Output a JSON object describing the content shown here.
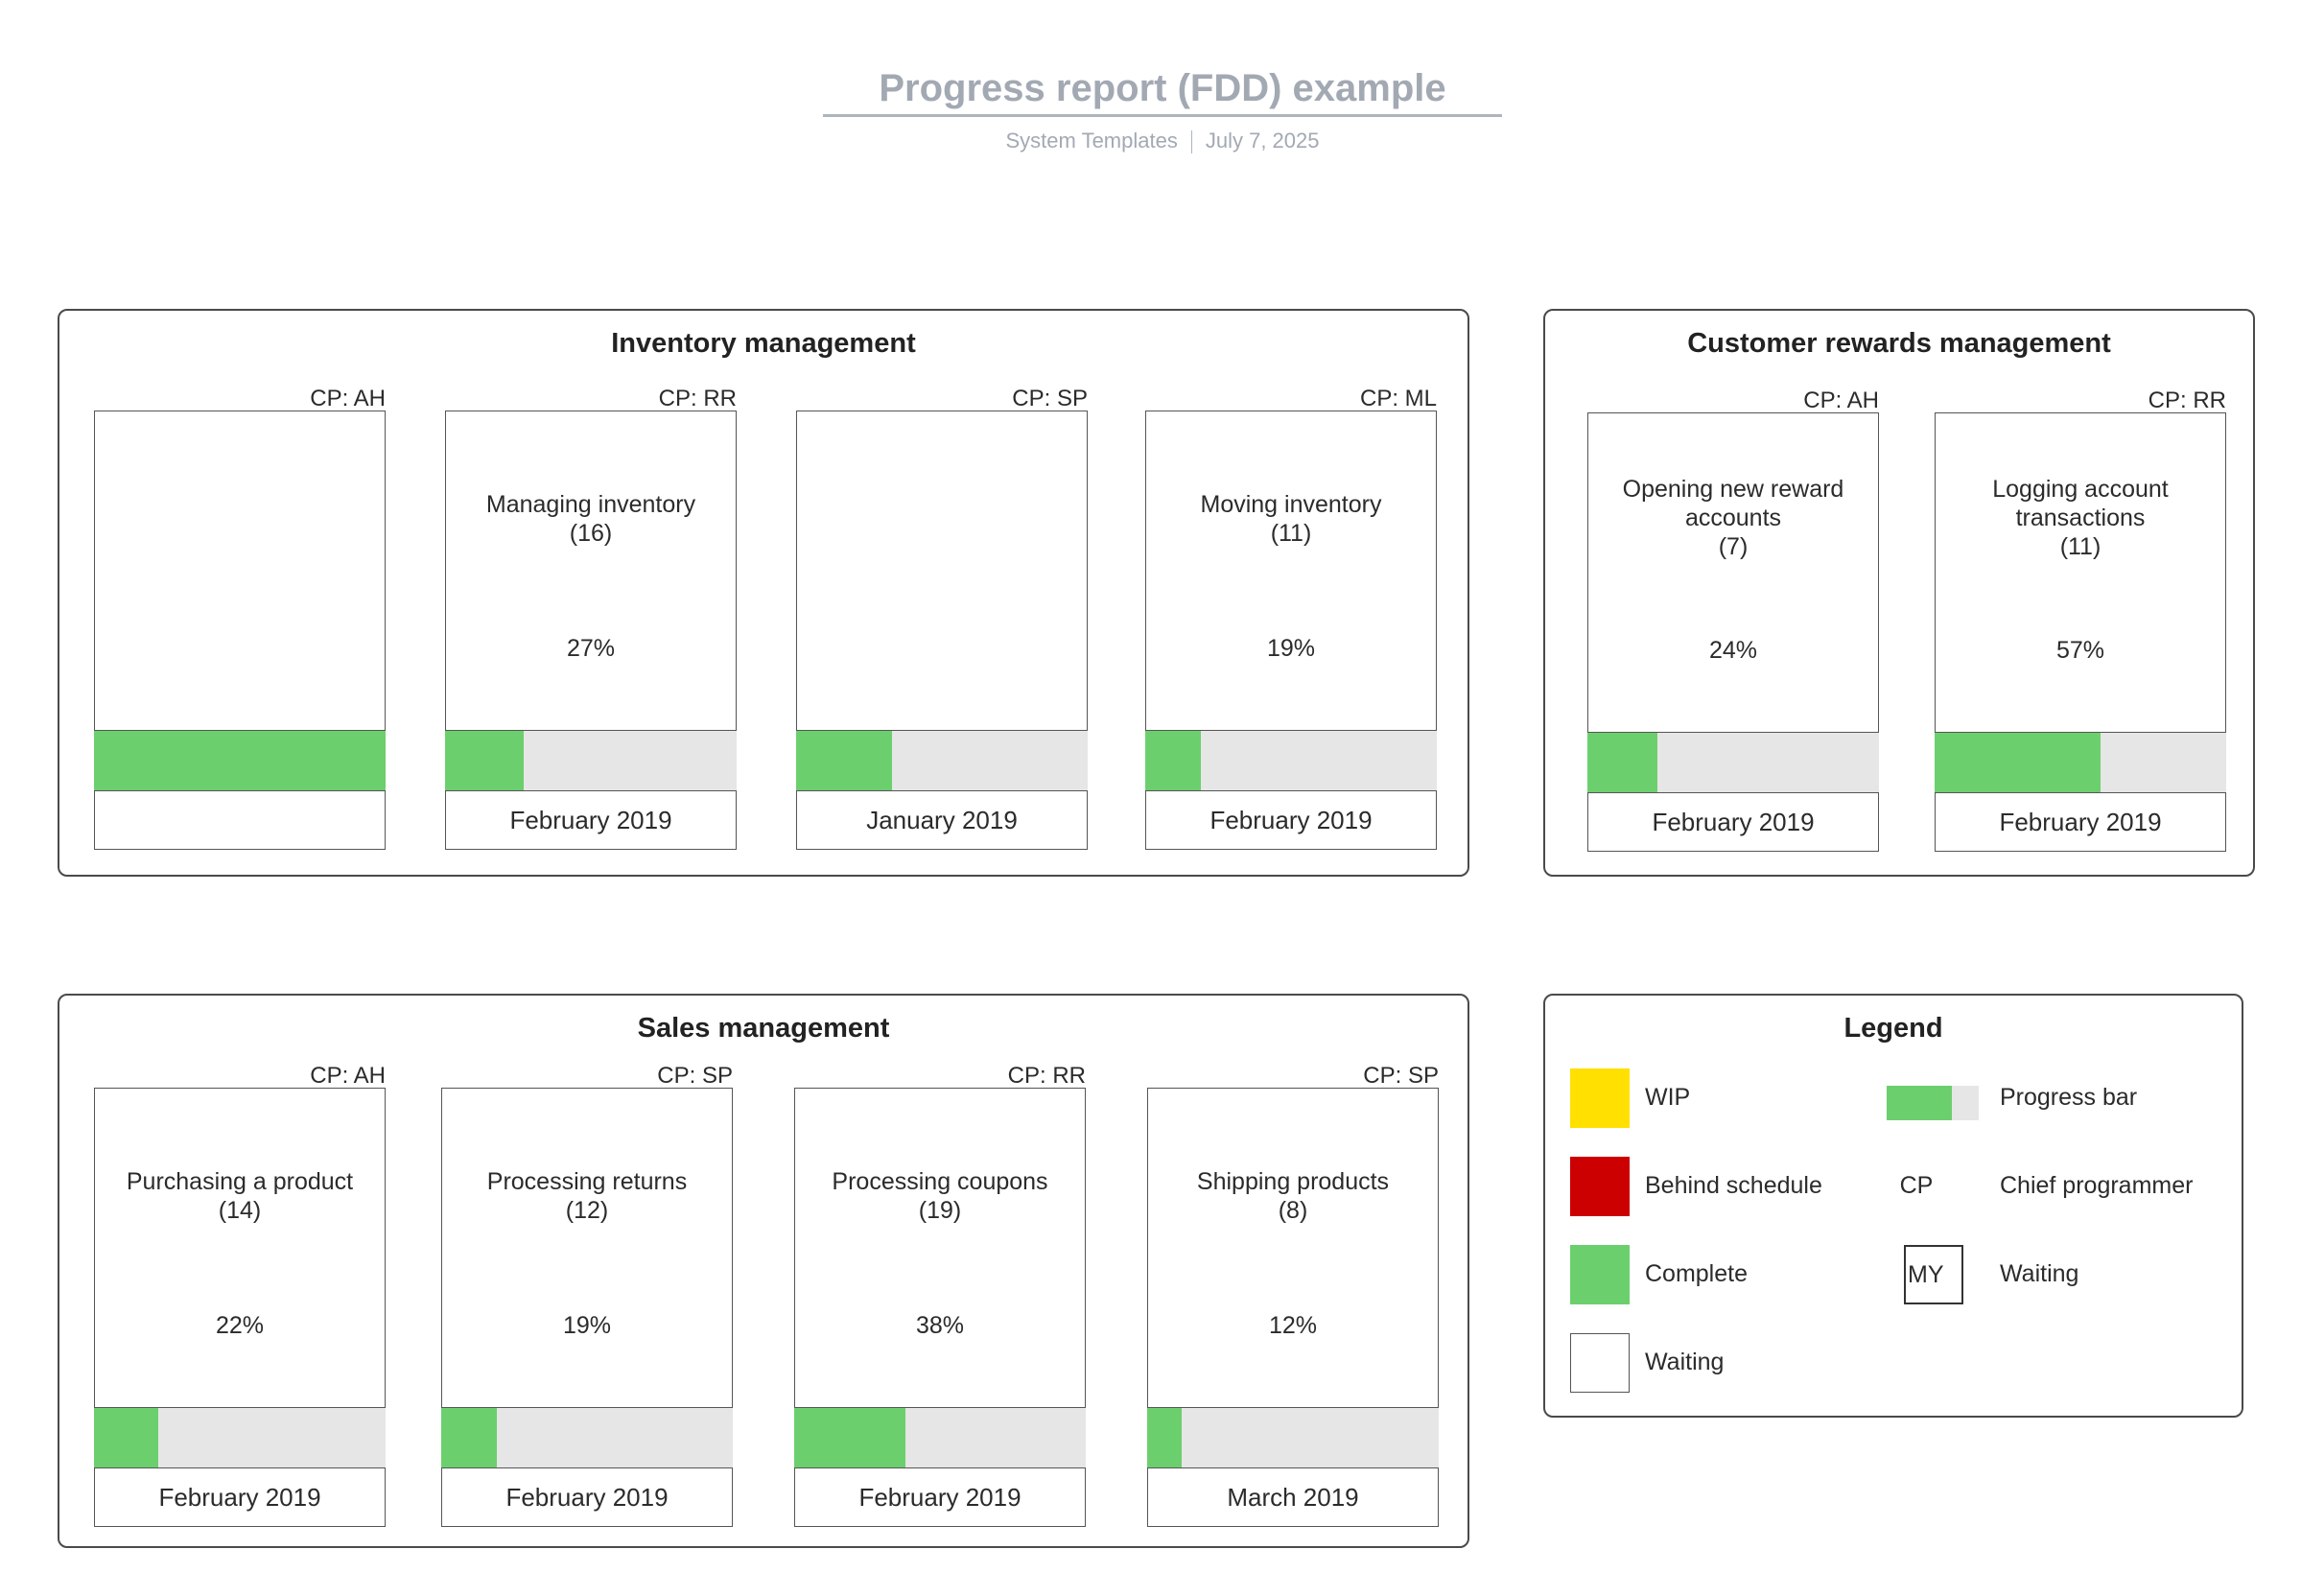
{
  "header": {
    "title": "Progress report (FDD) example",
    "source": "System Templates",
    "date": "July 7, 2025"
  },
  "groups": {
    "inventory": {
      "title": "Inventory management",
      "cards": [
        {
          "cp": "CP: AH",
          "name": "",
          "percent": "",
          "progress": 1.0,
          "date": ""
        },
        {
          "cp": "CP: RR",
          "name": "Managing inventory\n(16)",
          "percent": "27%",
          "progress": 0.27,
          "date": "February 2019"
        },
        {
          "cp": "CP: SP",
          "name": "",
          "percent": "",
          "progress": 0.33,
          "date": "January 2019"
        },
        {
          "cp": "CP: ML",
          "name": "Moving inventory\n(11)",
          "percent": "19%",
          "progress": 0.19,
          "date": "February 2019"
        }
      ]
    },
    "rewards": {
      "title": "Customer rewards management",
      "cards": [
        {
          "cp": "CP: AH",
          "name": "Opening new reward\naccounts\n(7)",
          "percent": "24%",
          "progress": 0.24,
          "date": "February 2019"
        },
        {
          "cp": "CP: RR",
          "name": "Logging account\ntransactions\n(11)",
          "percent": "57%",
          "progress": 0.57,
          "date": "February 2019"
        }
      ]
    },
    "sales": {
      "title": "Sales management",
      "cards": [
        {
          "cp": "CP: AH",
          "name": "Purchasing a product\n(14)",
          "percent": "22%",
          "progress": 0.22,
          "date": "February 2019"
        },
        {
          "cp": "CP: SP",
          "name": "Processing returns\n(12)",
          "percent": "19%",
          "progress": 0.19,
          "date": "February 2019"
        },
        {
          "cp": "CP: RR",
          "name": "Processing coupons\n(19)",
          "percent": "38%",
          "progress": 0.38,
          "date": "February 2019"
        },
        {
          "cp": "CP: SP",
          "name": "Shipping products\n(8)",
          "percent": "12%",
          "progress": 0.12,
          "date": "March 2019"
        }
      ]
    }
  },
  "legend": {
    "title": "Legend",
    "wip": "WIP",
    "behind": "Behind schedule",
    "complete": "Complete",
    "waiting": "Waiting",
    "progress_bar": "Progress bar",
    "cp_abbr": "CP",
    "chief_programmer": "Chief programmer",
    "my_abbr": "MY",
    "waiting_cp": "Waiting"
  },
  "colors": {
    "wip": "#ffe000",
    "behind": "#cc0000",
    "complete": "#6ccf6e",
    "bar_track": "#e6e6e6",
    "waiting": "#ffffff"
  }
}
